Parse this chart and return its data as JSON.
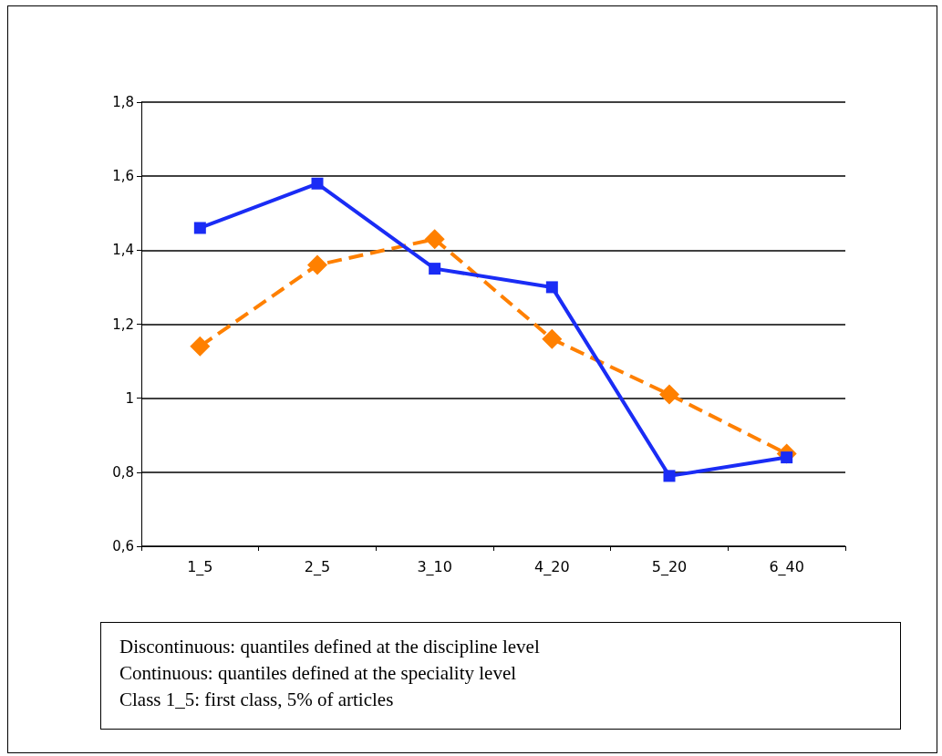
{
  "chart_data": {
    "type": "line",
    "categories": [
      "1_5",
      "2_5",
      "3_10",
      "4_20",
      "5_20",
      "6_40"
    ],
    "series": [
      {
        "color": "#1a2cf5",
        "values": [
          1.46,
          1.58,
          1.35,
          1.3,
          0.79,
          0.84
        ],
        "marker": "square",
        "line_style": "solid"
      },
      {
        "color": "#ff8000",
        "values": [
          1.14,
          1.36,
          1.43,
          1.16,
          1.01,
          0.85
        ],
        "marker": "diamond",
        "line_style": "dashed"
      }
    ],
    "ylim": [
      0.6,
      1.8
    ],
    "yticks": [
      {
        "value": 0.6,
        "label": "0,6"
      },
      {
        "value": 0.8,
        "label": "0,8"
      },
      1,
      {
        "value": 1.2,
        "label": "1,2"
      },
      {
        "value": 1.4,
        "label": "1,4"
      },
      {
        "value": 1.6,
        "label": "1,6"
      },
      {
        "value": 1.8,
        "label": "1,8"
      }
    ],
    "grid": "y",
    "annotations": [
      "Discontinuous: quantiles defined at the discipline level",
      "Continuous: quantiles defined at the speciality level",
      "Class 1_5: first class, 5% of articles"
    ]
  }
}
